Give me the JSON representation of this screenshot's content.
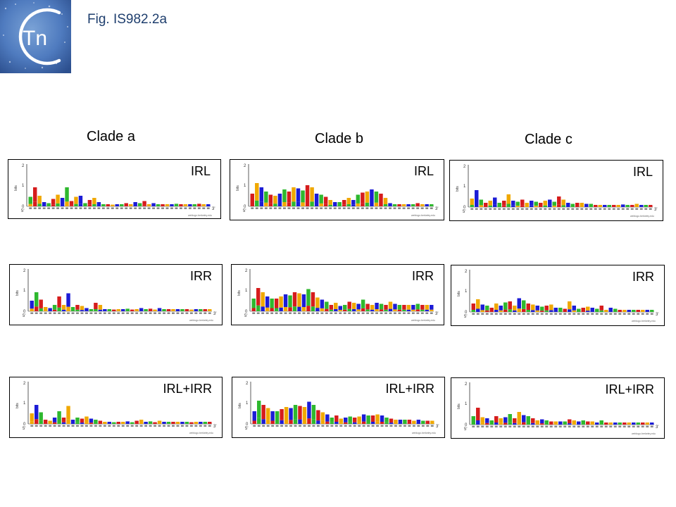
{
  "header": {
    "logo_text": "Tn",
    "figure_title": "Fig. IS982.2a"
  },
  "clades": [
    {
      "title": "Clade a",
      "panels": [
        {
          "label": "IRL",
          "profile": [
            0.45,
            0.9,
            0.5,
            0.2,
            0.15,
            0.35,
            0.55,
            0.4,
            0.9,
            0.25,
            0.45,
            0.5,
            0.15,
            0.3,
            0.4,
            0.2,
            0.1,
            0.1,
            0.08,
            0.1,
            0.1,
            0.15,
            0.1,
            0.2,
            0.15,
            0.25,
            0.1,
            0.15,
            0.1,
            0.1,
            0.1,
            0.1,
            0.12,
            0.1,
            0.1,
            0.1,
            0.1,
            0.12,
            0.1,
            0.1
          ]
        },
        {
          "label": "IRR",
          "profile": [
            0.5,
            0.9,
            0.55,
            0.2,
            0.15,
            0.3,
            0.7,
            0.3,
            0.85,
            0.2,
            0.3,
            0.25,
            0.15,
            0.1,
            0.4,
            0.3,
            0.1,
            0.1,
            0.08,
            0.1,
            0.1,
            0.12,
            0.08,
            0.1,
            0.15,
            0.1,
            0.12,
            0.08,
            0.15,
            0.1,
            0.1,
            0.1,
            0.1,
            0.1,
            0.1,
            0.08,
            0.1,
            0.1,
            0.1,
            0.1
          ]
        },
        {
          "label": "IRL+IRR",
          "profile": [
            0.5,
            0.9,
            0.55,
            0.2,
            0.15,
            0.3,
            0.6,
            0.3,
            0.85,
            0.2,
            0.3,
            0.25,
            0.35,
            0.25,
            0.2,
            0.15,
            0.1,
            0.1,
            0.08,
            0.1,
            0.1,
            0.12,
            0.08,
            0.15,
            0.2,
            0.1,
            0.12,
            0.08,
            0.15,
            0.1,
            0.1,
            0.1,
            0.1,
            0.1,
            0.1,
            0.08,
            0.1,
            0.1,
            0.1,
            0.1
          ]
        }
      ]
    },
    {
      "title": "Clade b",
      "panels": [
        {
          "label": "IRL",
          "profile": [
            0.6,
            1.1,
            0.9,
            0.7,
            0.55,
            0.5,
            0.6,
            0.8,
            0.7,
            0.9,
            0.85,
            0.75,
            1.0,
            0.9,
            0.6,
            0.55,
            0.45,
            0.3,
            0.2,
            0.2,
            0.3,
            0.4,
            0.3,
            0.55,
            0.65,
            0.7,
            0.8,
            0.7,
            0.6,
            0.4,
            0.15,
            0.1,
            0.1,
            0.1,
            0.1,
            0.1,
            0.15,
            0.1,
            0.1,
            0.1
          ]
        },
        {
          "label": "IRR",
          "profile": [
            0.6,
            1.1,
            0.9,
            0.7,
            0.6,
            0.6,
            0.7,
            0.8,
            0.75,
            0.9,
            0.85,
            0.8,
            1.05,
            0.9,
            0.65,
            0.55,
            0.45,
            0.3,
            0.4,
            0.25,
            0.3,
            0.45,
            0.4,
            0.35,
            0.55,
            0.35,
            0.3,
            0.4,
            0.35,
            0.3,
            0.45,
            0.35,
            0.3,
            0.3,
            0.3,
            0.3,
            0.35,
            0.3,
            0.3,
            0.3
          ]
        },
        {
          "label": "IRL+IRR",
          "profile": [
            0.6,
            1.1,
            0.9,
            0.75,
            0.6,
            0.6,
            0.7,
            0.8,
            0.75,
            0.9,
            0.85,
            0.8,
            1.05,
            0.9,
            0.65,
            0.55,
            0.45,
            0.3,
            0.4,
            0.25,
            0.3,
            0.35,
            0.3,
            0.35,
            0.45,
            0.4,
            0.4,
            0.45,
            0.4,
            0.3,
            0.25,
            0.2,
            0.2,
            0.2,
            0.2,
            0.15,
            0.2,
            0.15,
            0.15,
            0.15
          ]
        }
      ]
    },
    {
      "title": "Clade c",
      "panels": [
        {
          "label": "IRL",
          "profile": [
            0.4,
            0.8,
            0.35,
            0.2,
            0.3,
            0.45,
            0.2,
            0.3,
            0.6,
            0.3,
            0.25,
            0.35,
            0.2,
            0.3,
            0.25,
            0.2,
            0.3,
            0.35,
            0.25,
            0.5,
            0.35,
            0.2,
            0.15,
            0.2,
            0.2,
            0.15,
            0.15,
            0.1,
            0.1,
            0.1,
            0.1,
            0.1,
            0.1,
            0.12,
            0.1,
            0.1,
            0.15,
            0.1,
            0.1,
            0.1
          ]
        },
        {
          "label": "IRR",
          "profile": [
            0.4,
            0.6,
            0.35,
            0.3,
            0.2,
            0.4,
            0.3,
            0.45,
            0.5,
            0.3,
            0.65,
            0.55,
            0.4,
            0.35,
            0.3,
            0.25,
            0.3,
            0.35,
            0.2,
            0.2,
            0.15,
            0.5,
            0.3,
            0.15,
            0.2,
            0.25,
            0.2,
            0.15,
            0.3,
            0.1,
            0.2,
            0.15,
            0.1,
            0.1,
            0.1,
            0.1,
            0.1,
            0.1,
            0.1,
            0.1
          ]
        },
        {
          "label": "IRL+IRR",
          "profile": [
            0.4,
            0.8,
            0.35,
            0.3,
            0.2,
            0.4,
            0.3,
            0.35,
            0.5,
            0.3,
            0.6,
            0.45,
            0.4,
            0.3,
            0.2,
            0.25,
            0.2,
            0.15,
            0.15,
            0.15,
            0.15,
            0.25,
            0.2,
            0.15,
            0.2,
            0.15,
            0.15,
            0.1,
            0.2,
            0.1,
            0.1,
            0.1,
            0.1,
            0.1,
            0.1,
            0.1,
            0.1,
            0.1,
            0.1,
            0.1
          ]
        }
      ]
    }
  ],
  "logo_axis": {
    "ymax": "2",
    "ymid": "1",
    "ymin": "0",
    "ylabel": "bits",
    "start": "5'",
    "end": "3'",
    "credit": "weblogo.berkeley.edu"
  },
  "nucleotide_colors": {
    "A": "#2eb82e",
    "C": "#1c1cd6",
    "G": "#f0a800",
    "T": "#d61c1c"
  }
}
